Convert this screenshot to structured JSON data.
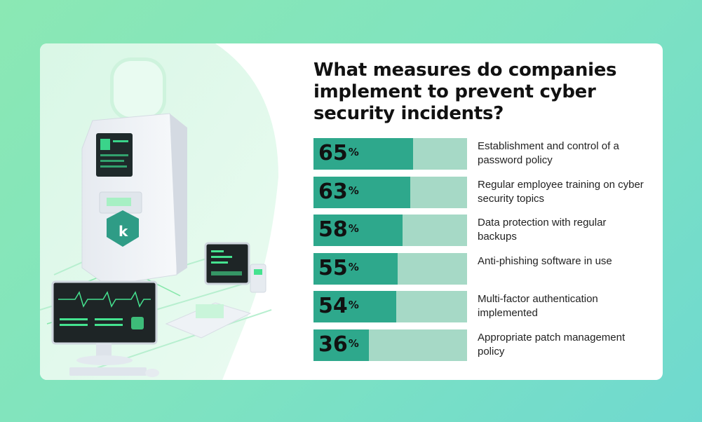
{
  "title": "What measures do companies implement to prevent cyber security incidents?",
  "colors": {
    "bar_fill": "#2ea88c",
    "bar_track": "#a6d9c6",
    "background": "#7fe3c0"
  },
  "chart_data": {
    "type": "bar",
    "orientation": "horizontal",
    "title": "What measures do companies implement to prevent cyber security incidents?",
    "categories": [
      "Establishment and control of a password policy",
      "Regular employee training on cyber security topics",
      "Data protection with regular backups",
      "Anti-phishing software in use",
      "Multi-factor authentication implemented",
      "Appropriate patch management policy"
    ],
    "values": [
      65,
      63,
      58,
      55,
      54,
      36
    ],
    "value_labels": [
      "65",
      "63",
      "58",
      "55",
      "54",
      "36"
    ],
    "unit": "%",
    "xlim": [
      0,
      100
    ],
    "grid": false
  }
}
